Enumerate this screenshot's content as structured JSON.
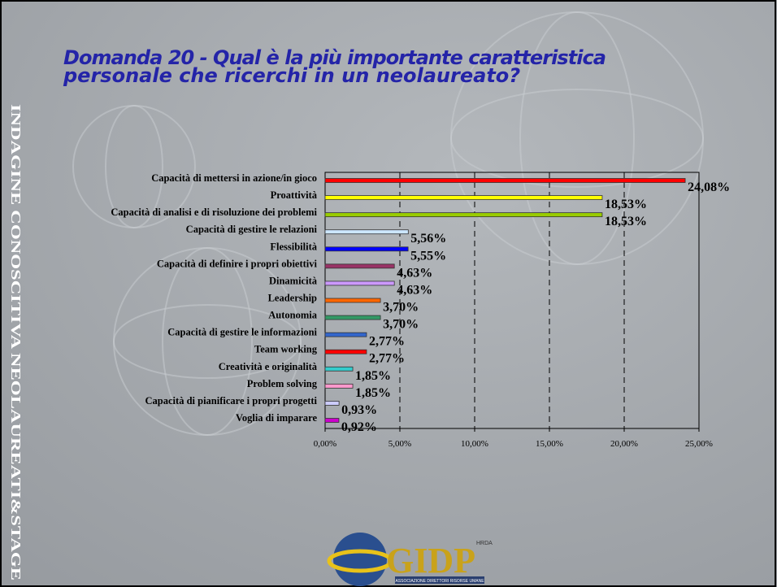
{
  "side_label": "INDAGINE CONOSCITIVA NEOLAUREATI&STAGE",
  "chart_data": {
    "type": "bar",
    "orientation": "horizontal",
    "title": [
      "Domanda 20 - Qual è la più importante caratteristica",
      "personale che ricerchi in un neolaureato?"
    ],
    "categories": [
      "Capacità di mettersi in azione/in gioco",
      "Proattività",
      "Capacità di analisi e di risoluzione dei problemi",
      "Capacità di gestire le relazioni",
      "Flessibilità",
      "Capacità di definire i propri obiettivi",
      "Dinamicità",
      "Leadership",
      "Autonomia",
      "Capacità di gestire le informazioni",
      "Team working",
      "Creatività e originalità",
      "Problem solving",
      "Capacità di pianificare i propri progetti",
      "Voglia di imparare"
    ],
    "values": [
      24.08,
      18.53,
      18.53,
      5.56,
      5.55,
      4.63,
      4.63,
      3.7,
      3.7,
      2.77,
      2.77,
      1.85,
      1.85,
      0.93,
      0.92
    ],
    "value_labels": [
      "24,08%",
      "18,53%",
      "18,53%",
      "5,56%",
      "5,55%",
      "4,63%",
      "4,63%",
      "3,70%",
      "3,70%",
      "2,77%",
      "2,77%",
      "1,85%",
      "1,85%",
      "0,93%",
      "0,92%"
    ],
    "colors": [
      "#ff0000",
      "#ffff00",
      "#99cc00",
      "#cce6ff",
      "#0000ff",
      "#993366",
      "#cc99ff",
      "#ff6600",
      "#339966",
      "#3366cc",
      "#ff0000",
      "#33cccc",
      "#ff99cc",
      "#ccccff",
      "#cc00cc"
    ],
    "xlim": [
      0,
      25
    ],
    "xticks": [
      {
        "value": 0,
        "label": "0,00%"
      },
      {
        "value": 5,
        "label": "5,00%"
      },
      {
        "value": 10,
        "label": "10,00%"
      },
      {
        "value": 15,
        "label": "15,00%"
      },
      {
        "value": 20,
        "label": "20,00%"
      },
      {
        "value": 25,
        "label": "25,00%"
      }
    ],
    "grid": true
  },
  "logo": {
    "name": "GIDP",
    "tag": "HRDA",
    "caption": "ASSOCIAZIONE DIRETTORI RISORSE UMANE"
  }
}
